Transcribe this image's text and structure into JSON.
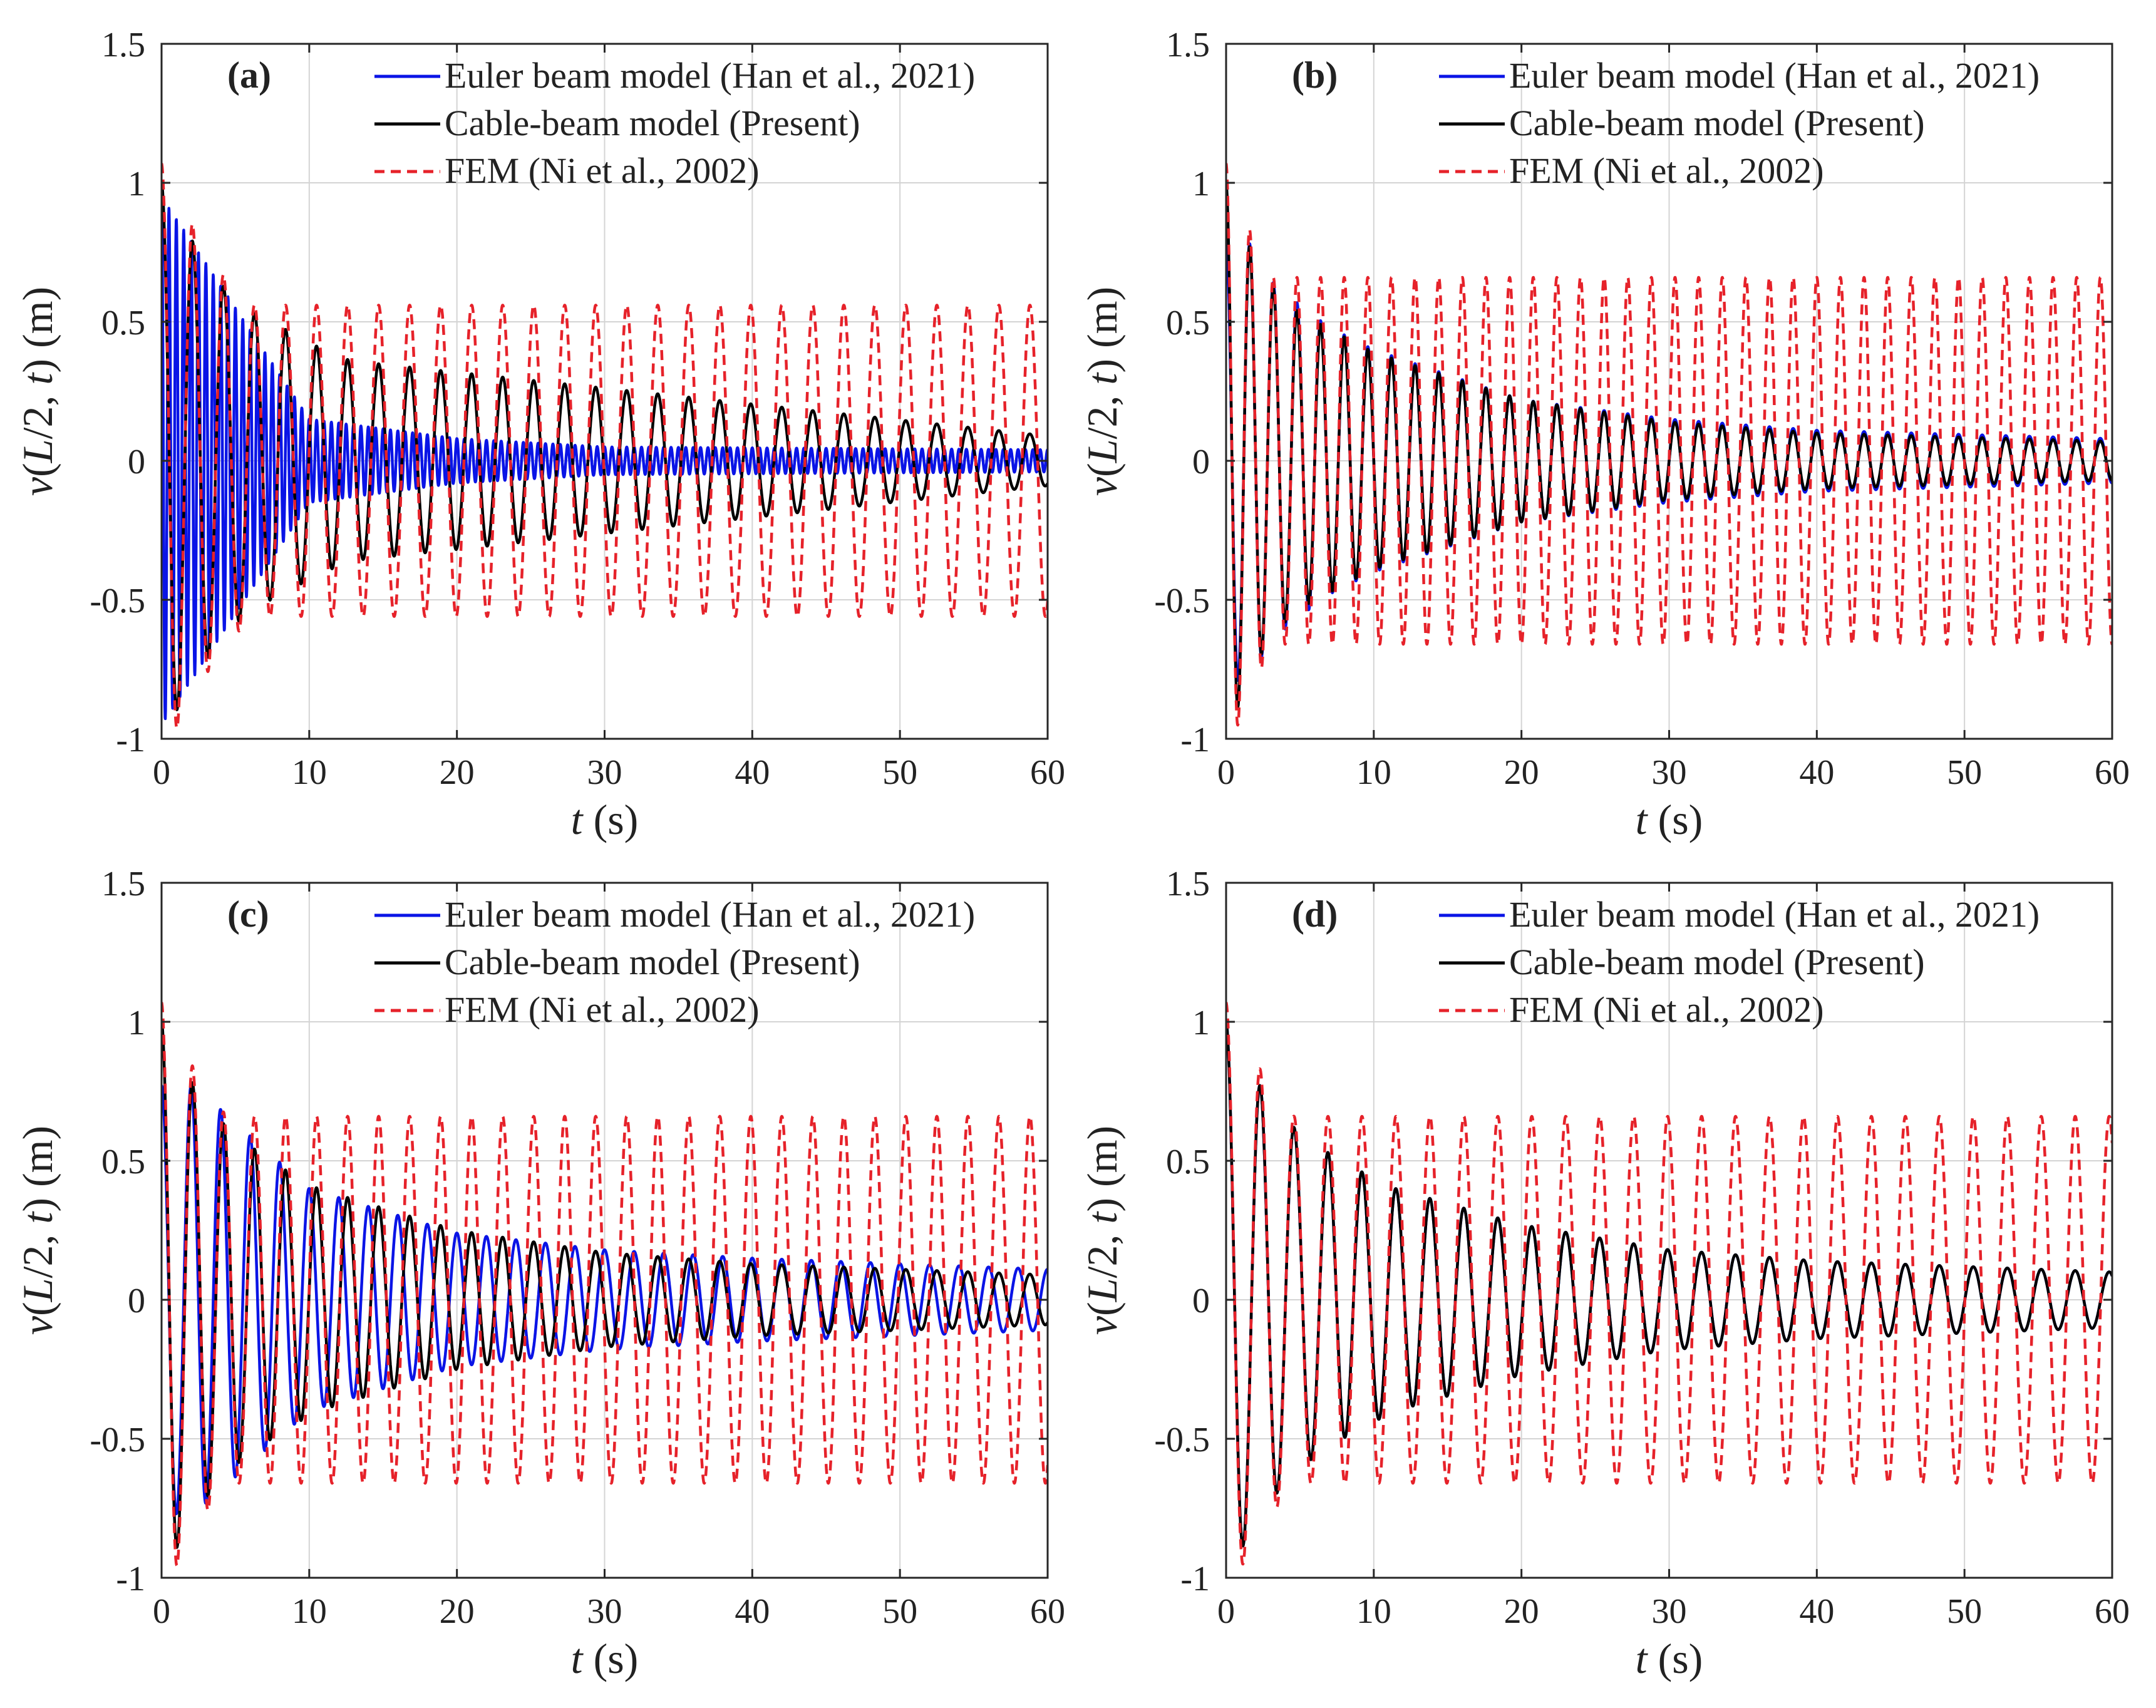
{
  "figure": {
    "legend": {
      "euler": "Euler beam model (Han et al., 2021)",
      "cable": "Cable-beam model (Present)",
      "fem": "FEM (Ni et al., 2002)"
    },
    "colors": {
      "euler": "#0a14e6",
      "cable": "#000000",
      "fem": "#e6222a",
      "grid": "#d4d4d4",
      "axis": "#262626"
    }
  },
  "chart_data": [
    {
      "type": "line",
      "panel": "(a)",
      "xlabel": "t (s)",
      "ylabel": "v(L/2, t) (m)",
      "xlim": [
        0,
        60
      ],
      "ylim": [
        -1,
        1.5
      ],
      "xticks": [
        "0",
        "10",
        "20",
        "30",
        "40",
        "50",
        "60"
      ],
      "yticks": [
        "-1",
        "-0.5",
        "0",
        "0.5",
        "1",
        "1.5"
      ],
      "grid": true,
      "legend_position": "top-right",
      "series": [
        {
          "name": "Euler beam model (Han et al., 2021)",
          "style": "solid",
          "initial_amplitude_m": 0.95,
          "decay_envelope_m": {
            "t": [
              0,
              10,
              20,
              30,
              60
            ],
            "amplitude": [
              0.95,
              0.15,
              0.08,
              0.05,
              0.04
            ]
          },
          "period_s": 0.5
        },
        {
          "name": "Cable-beam model (Present)",
          "style": "solid",
          "initial_amplitude_m": 1.0,
          "peaks_m": {
            "t": [
              0,
              2.3,
              4.3,
              6.3,
              8.5,
              10.6,
              12.8,
              60
            ],
            "value": [
              1.0,
              0.77,
              0.62,
              0.53,
              0.47,
              0.41,
              0.36,
              0.09
            ]
          },
          "period_s": 2.1
        },
        {
          "name": "FEM (Ni et al., 2002)",
          "style": "dashed",
          "initial_amplitude_m": 1.07,
          "peaks_m": {
            "t": [
              0,
              2.3,
              4.3,
              6.3
            ],
            "value": [
              1.07,
              0.83,
              0.66,
              0.56
            ]
          },
          "period_s": 2.1
        }
      ]
    },
    {
      "type": "line",
      "panel": "(b)",
      "xlabel": "t (s)",
      "ylabel": "v(L/2, t) (m)",
      "xlim": [
        0,
        60
      ],
      "ylim": [
        -1,
        1.5
      ],
      "xticks": [
        "0",
        "10",
        "20",
        "30",
        "40",
        "50",
        "60"
      ],
      "yticks": [
        "-1",
        "-0.5",
        "0",
        "0.5",
        "1",
        "1.5"
      ],
      "grid": true,
      "legend_position": "top-right",
      "series": [
        {
          "name": "Euler beam model (Han et al., 2021)",
          "style": "solid",
          "peaks_m": {
            "t": [
              1.5,
              3.0,
              5.0,
              7.0,
              10.0,
              20.0,
              30.0,
              40.0,
              60.0
            ],
            "value": [
              0.79,
              0.65,
              0.56,
              0.48,
              0.4,
              0.22,
              0.15,
              0.11,
              0.08
            ]
          },
          "period_s": 1.6
        },
        {
          "name": "Cable-beam model (Present)",
          "style": "solid",
          "peaks_m": {
            "t": [
              0,
              1.6,
              3.2,
              5.0,
              10.0,
              20.0,
              30.0,
              40.0,
              60.0
            ],
            "value": [
              1.0,
              0.77,
              0.62,
              0.53,
              0.39,
              0.22,
              0.14,
              0.1,
              0.07
            ]
          },
          "period_s": 1.6
        },
        {
          "name": "FEM (Ni et al., 2002)",
          "style": "dashed",
          "peaks_m": {
            "t": [
              0,
              1.6,
              3.2
            ],
            "value": [
              1.07,
              0.83,
              0.66
            ]
          },
          "period_s": 1.6
        }
      ]
    },
    {
      "type": "line",
      "panel": "(c)",
      "xlabel": "t (s)",
      "ylabel": "v(L/2, t) (m)",
      "xlim": [
        0,
        60
      ],
      "ylim": [
        -1,
        1.5
      ],
      "xticks": [
        "0",
        "10",
        "20",
        "30",
        "40",
        "50",
        "60"
      ],
      "yticks": [
        "-1",
        "-0.5",
        "0",
        "0.5",
        "1",
        "1.5"
      ],
      "grid": true,
      "legend_position": "top-right",
      "series": [
        {
          "name": "Euler beam model (Han et al., 2021)",
          "style": "solid",
          "peaks_m": {
            "t": [
              2.2,
              10.0,
              20.0,
              30.0,
              40.0,
              60.0
            ],
            "value": [
              0.77,
              0.4,
              0.24,
              0.18,
              0.15,
              0.11
            ]
          },
          "period_s": 2.0
        },
        {
          "name": "Cable-beam model (Present)",
          "style": "solid",
          "peaks_m": {
            "t": [
              0,
              2.2,
              4.4,
              6.6,
              8.6,
              10.6,
              20.0,
              30.0,
              40.0,
              60.0
            ],
            "value": [
              1.0,
              0.77,
              0.62,
              0.53,
              0.46,
              0.4,
              0.25,
              0.17,
              0.13,
              0.09
            ]
          },
          "period_s": 2.1
        },
        {
          "name": "FEM (Ni et al., 2002)",
          "style": "dashed",
          "peaks_m": {
            "t": [
              0,
              2.2,
              4.4
            ],
            "value": [
              1.07,
              0.83,
              0.66
            ]
          },
          "period_s": 2.1
        }
      ]
    },
    {
      "type": "line",
      "panel": "(d)",
      "xlabel": "t (s)",
      "ylabel": "v(L/2, t) (m)",
      "xlim": [
        0,
        60
      ],
      "ylim": [
        -1,
        1.5
      ],
      "xticks": [
        "0",
        "10",
        "20",
        "30",
        "40",
        "50",
        "60"
      ],
      "yticks": [
        "-1",
        "-0.5",
        "0",
        "0.5",
        "1",
        "1.5"
      ],
      "grid": true,
      "legend_position": "top-right",
      "series": [
        {
          "name": "Euler beam model (Han et al., 2021)",
          "style": "solid",
          "peaks_m": {
            "t": [
              0,
              2.3,
              4.6,
              6.9,
              9.2,
              11.5,
              20.0,
              30.0,
              40.0,
              60.0
            ],
            "value": [
              1.0,
              0.77,
              0.62,
              0.53,
              0.46,
              0.4,
              0.27,
              0.18,
              0.14,
              0.1
            ]
          },
          "period_s": 2.3
        },
        {
          "name": "Cable-beam model (Present)",
          "style": "solid",
          "peaks_m": {
            "t": [
              0,
              2.3,
              4.6,
              6.9,
              9.2,
              11.5,
              20.0,
              30.0,
              40.0,
              60.0
            ],
            "value": [
              1.0,
              0.77,
              0.62,
              0.53,
              0.46,
              0.4,
              0.27,
              0.18,
              0.14,
              0.1
            ]
          },
          "period_s": 2.3
        },
        {
          "name": "FEM (Ni et al., 2002)",
          "style": "dashed",
          "peaks_m": {
            "t": [
              0,
              2.3,
              4.6
            ],
            "value": [
              1.07,
              0.83,
              0.66
            ]
          },
          "period_s": 2.3
        }
      ]
    }
  ]
}
